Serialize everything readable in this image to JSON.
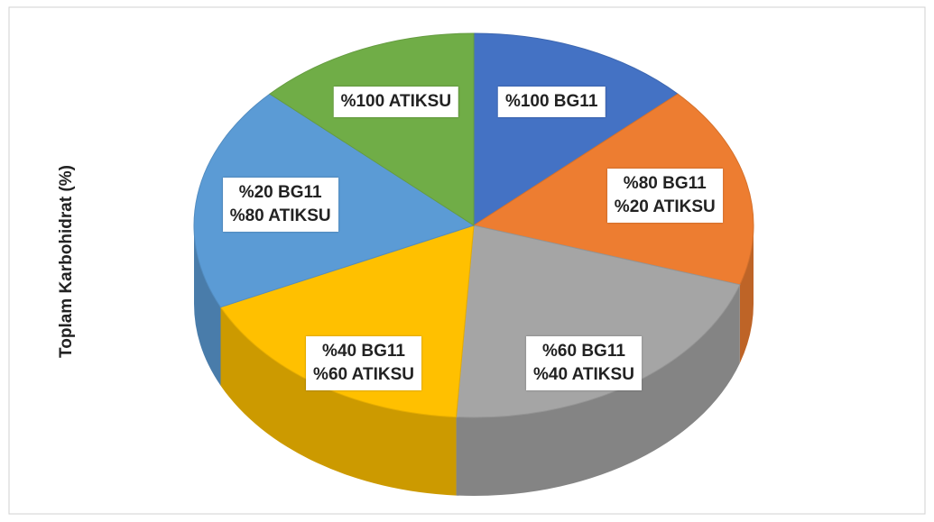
{
  "chart_data": {
    "type": "pie",
    "y_label": "Toplam Karbohidrat (%)",
    "categories": [
      "%100 BG11",
      "%80 BG11\n%20 ATIKSU",
      "%60 BG11\n%40 ATIKSU",
      "%40 BG11\n%60 ATIKSU",
      "%20 BG11\n%80 ATIKSU",
      "%100 ATIKSU"
    ],
    "values": [
      13,
      17,
      21,
      17,
      19,
      13
    ],
    "colors": [
      "#4472c4",
      "#ed7d31",
      "#a5a5a5",
      "#ffc000",
      "#5b9bd5",
      "#70ad47"
    ]
  }
}
